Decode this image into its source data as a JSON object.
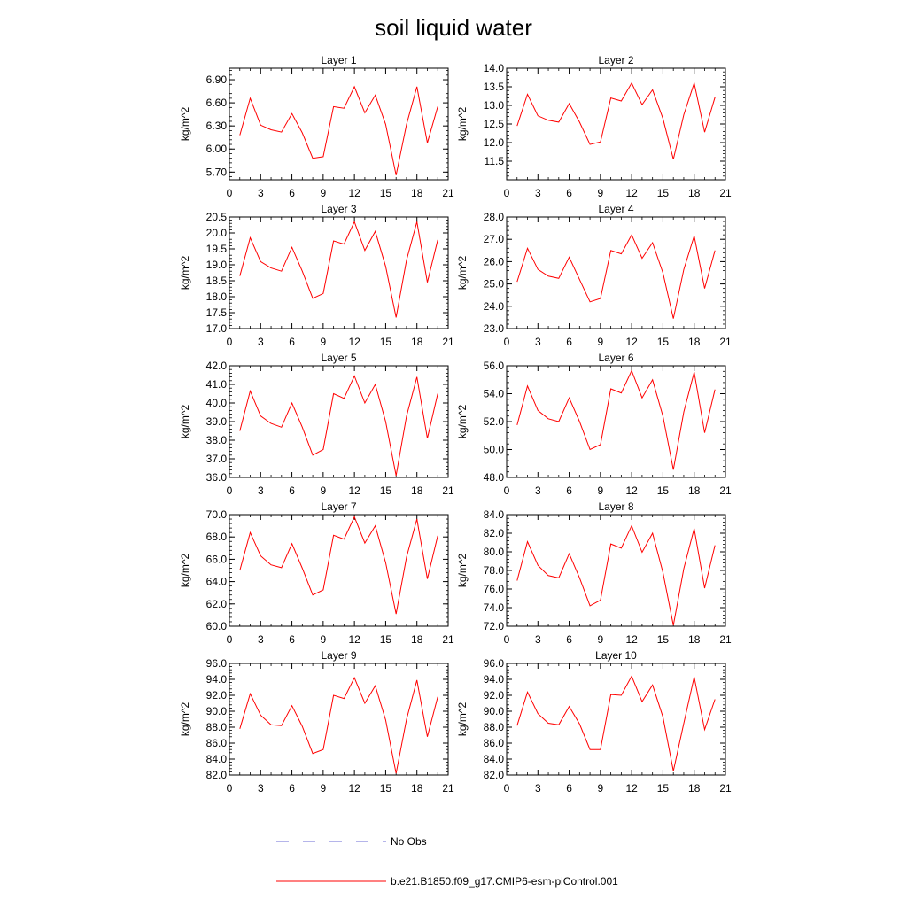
{
  "title": "soil liquid water",
  "legend": {
    "no_obs_label": "No Obs",
    "no_obs_color": "#6b6bd6",
    "model_label": "b.e21.B1850.f09_g17.CMIP6-esm-piControl.001",
    "model_color": "#ff0000"
  },
  "chart_data": [
    {
      "type": "line",
      "title": "Layer 1",
      "ylabel": "kg/m^2",
      "xlim": [
        0,
        21
      ],
      "xticks": [
        0,
        3,
        6,
        9,
        12,
        15,
        18,
        21
      ],
      "ylim": [
        5.6,
        7.05
      ],
      "yticks": [
        5.7,
        6.0,
        6.3,
        6.6,
        6.9
      ],
      "ytick_decimals": 2,
      "x": [
        1,
        2,
        3,
        4,
        5,
        6,
        7,
        8,
        9,
        10,
        11,
        12,
        13,
        14,
        15,
        16,
        17,
        18,
        19,
        20
      ],
      "series": [
        {
          "name": "b.e21.B1850.f09_g17.CMIP6-esm-piControl.001",
          "color": "#ff0000",
          "values": [
            6.18,
            6.66,
            6.31,
            6.25,
            6.22,
            6.46,
            6.21,
            5.88,
            5.9,
            6.55,
            6.53,
            6.81,
            6.47,
            6.7,
            6.32,
            5.66,
            6.32,
            6.81,
            6.08,
            6.55
          ]
        }
      ]
    },
    {
      "type": "line",
      "title": "Layer 2",
      "ylabel": "kg/m^2",
      "xlim": [
        0,
        21
      ],
      "xticks": [
        0,
        3,
        6,
        9,
        12,
        15,
        18,
        21
      ],
      "ylim": [
        11.0,
        14.0
      ],
      "yticks": [
        11.5,
        12.0,
        12.5,
        13.0,
        13.5,
        14.0
      ],
      "ytick_decimals": 1,
      "x": [
        1,
        2,
        3,
        4,
        5,
        6,
        7,
        8,
        9,
        10,
        11,
        12,
        13,
        14,
        15,
        16,
        17,
        18,
        19,
        20
      ],
      "series": [
        {
          "name": "b.e21.B1850.f09_g17.CMIP6-esm-piControl.001",
          "color": "#ff0000",
          "values": [
            12.45,
            13.3,
            12.72,
            12.6,
            12.55,
            13.05,
            12.55,
            11.95,
            12.02,
            13.2,
            13.12,
            13.6,
            13.02,
            13.42,
            12.65,
            11.55,
            12.75,
            13.6,
            12.28,
            13.22
          ]
        }
      ]
    },
    {
      "type": "line",
      "title": "Layer 3",
      "ylabel": "kg/m^2",
      "xlim": [
        0,
        21
      ],
      "xticks": [
        0,
        3,
        6,
        9,
        12,
        15,
        18,
        21
      ],
      "ylim": [
        17.0,
        20.5
      ],
      "yticks": [
        17.0,
        17.5,
        18.0,
        18.5,
        19.0,
        19.5,
        20.0,
        20.5
      ],
      "ytick_decimals": 1,
      "x": [
        1,
        2,
        3,
        4,
        5,
        6,
        7,
        8,
        9,
        10,
        11,
        12,
        13,
        14,
        15,
        16,
        17,
        18,
        19,
        20
      ],
      "series": [
        {
          "name": "b.e21.B1850.f09_g17.CMIP6-esm-piControl.001",
          "color": "#ff0000",
          "values": [
            18.65,
            19.85,
            19.1,
            18.9,
            18.8,
            19.55,
            18.8,
            17.95,
            18.1,
            19.75,
            19.65,
            20.35,
            19.45,
            20.05,
            18.95,
            17.35,
            19.15,
            20.35,
            18.45,
            19.78
          ]
        }
      ]
    },
    {
      "type": "line",
      "title": "Layer 4",
      "ylabel": "kg/m^2",
      "xlim": [
        0,
        21
      ],
      "xticks": [
        0,
        3,
        6,
        9,
        12,
        15,
        18,
        21
      ],
      "ylim": [
        23.0,
        28.0
      ],
      "yticks": [
        23.0,
        24.0,
        25.0,
        26.0,
        27.0,
        28.0
      ],
      "ytick_decimals": 1,
      "x": [
        1,
        2,
        3,
        4,
        5,
        6,
        7,
        8,
        9,
        10,
        11,
        12,
        13,
        14,
        15,
        16,
        17,
        18,
        19,
        20
      ],
      "series": [
        {
          "name": "b.e21.B1850.f09_g17.CMIP6-esm-piControl.001",
          "color": "#ff0000",
          "values": [
            25.1,
            26.6,
            25.65,
            25.35,
            25.25,
            26.2,
            25.2,
            24.2,
            24.35,
            26.5,
            26.35,
            27.2,
            26.15,
            26.85,
            25.5,
            23.45,
            25.65,
            27.15,
            24.8,
            26.5
          ]
        }
      ]
    },
    {
      "type": "line",
      "title": "Layer 5",
      "ylabel": "kg/m^2",
      "xlim": [
        0,
        21
      ],
      "xticks": [
        0,
        3,
        6,
        9,
        12,
        15,
        18,
        21
      ],
      "ylim": [
        36.0,
        42.0
      ],
      "yticks": [
        36.0,
        37.0,
        38.0,
        39.0,
        40.0,
        41.0,
        42.0
      ],
      "ytick_decimals": 1,
      "x": [
        1,
        2,
        3,
        4,
        5,
        6,
        7,
        8,
        9,
        10,
        11,
        12,
        13,
        14,
        15,
        16,
        17,
        18,
        19,
        20
      ],
      "series": [
        {
          "name": "b.e21.B1850.f09_g17.CMIP6-esm-piControl.001",
          "color": "#ff0000",
          "values": [
            38.5,
            40.65,
            39.3,
            38.9,
            38.7,
            40.0,
            38.7,
            37.2,
            37.5,
            40.5,
            40.25,
            41.45,
            40.0,
            41.0,
            39.0,
            36.1,
            39.3,
            41.4,
            38.1,
            40.5
          ]
        }
      ]
    },
    {
      "type": "line",
      "title": "Layer 6",
      "ylabel": "kg/m^2",
      "xlim": [
        0,
        21
      ],
      "xticks": [
        0,
        3,
        6,
        9,
        12,
        15,
        18,
        21
      ],
      "ylim": [
        48.0,
        56.0
      ],
      "yticks": [
        48.0,
        50.0,
        52.0,
        54.0,
        56.0
      ],
      "ytick_decimals": 1,
      "x": [
        1,
        2,
        3,
        4,
        5,
        6,
        7,
        8,
        9,
        10,
        11,
        12,
        13,
        14,
        15,
        16,
        17,
        18,
        19,
        20
      ],
      "series": [
        {
          "name": "b.e21.B1850.f09_g17.CMIP6-esm-piControl.001",
          "color": "#ff0000",
          "values": [
            51.75,
            54.55,
            52.8,
            52.2,
            52.0,
            53.7,
            52.0,
            50.0,
            50.35,
            54.35,
            54.05,
            55.65,
            53.7,
            55.0,
            52.4,
            48.55,
            52.7,
            55.55,
            51.2,
            54.3
          ]
        }
      ]
    },
    {
      "type": "line",
      "title": "Layer 7",
      "ylabel": "kg/m^2",
      "xlim": [
        0,
        21
      ],
      "xticks": [
        0,
        3,
        6,
        9,
        12,
        15,
        18,
        21
      ],
      "ylim": [
        60.0,
        70.0
      ],
      "yticks": [
        60.0,
        62.0,
        64.0,
        66.0,
        68.0,
        70.0
      ],
      "ytick_decimals": 1,
      "x": [
        1,
        2,
        3,
        4,
        5,
        6,
        7,
        8,
        9,
        10,
        11,
        12,
        13,
        14,
        15,
        16,
        17,
        18,
        19,
        20
      ],
      "series": [
        {
          "name": "b.e21.B1850.f09_g17.CMIP6-esm-piControl.001",
          "color": "#ff0000",
          "values": [
            65.0,
            68.4,
            66.3,
            65.5,
            65.25,
            67.4,
            65.2,
            62.8,
            63.25,
            68.15,
            67.8,
            69.8,
            67.45,
            69.0,
            65.7,
            61.1,
            66.2,
            69.6,
            64.25,
            68.1
          ]
        }
      ]
    },
    {
      "type": "line",
      "title": "Layer 8",
      "ylabel": "kg/m^2",
      "xlim": [
        0,
        21
      ],
      "xticks": [
        0,
        3,
        6,
        9,
        12,
        15,
        18,
        21
      ],
      "ylim": [
        72.0,
        84.0
      ],
      "yticks": [
        72.0,
        74.0,
        76.0,
        78.0,
        80.0,
        82.0,
        84.0
      ],
      "ytick_decimals": 1,
      "x": [
        1,
        2,
        3,
        4,
        5,
        6,
        7,
        8,
        9,
        10,
        11,
        12,
        13,
        14,
        15,
        16,
        17,
        18,
        19,
        20
      ],
      "series": [
        {
          "name": "b.e21.B1850.f09_g17.CMIP6-esm-piControl.001",
          "color": "#ff0000",
          "values": [
            76.9,
            81.1,
            78.55,
            77.45,
            77.2,
            79.8,
            77.2,
            74.2,
            74.8,
            80.85,
            80.4,
            82.8,
            79.95,
            82.0,
            77.8,
            72.1,
            78.2,
            82.5,
            76.1,
            80.7
          ]
        }
      ]
    },
    {
      "type": "line",
      "title": "Layer 9",
      "ylabel": "kg/m^2",
      "xlim": [
        0,
        21
      ],
      "xticks": [
        0,
        3,
        6,
        9,
        12,
        15,
        18,
        21
      ],
      "ylim": [
        82.0,
        96.0
      ],
      "yticks": [
        82.0,
        84.0,
        86.0,
        88.0,
        90.0,
        92.0,
        94.0,
        96.0
      ],
      "ytick_decimals": 1,
      "x": [
        1,
        2,
        3,
        4,
        5,
        6,
        7,
        8,
        9,
        10,
        11,
        12,
        13,
        14,
        15,
        16,
        17,
        18,
        19,
        20
      ],
      "series": [
        {
          "name": "b.e21.B1850.f09_g17.CMIP6-esm-piControl.001",
          "color": "#ff0000",
          "values": [
            87.8,
            92.2,
            89.5,
            88.3,
            88.2,
            90.7,
            88.1,
            84.7,
            85.2,
            92.0,
            91.6,
            94.2,
            91.0,
            93.2,
            88.9,
            82.2,
            89.0,
            93.9,
            86.8,
            91.8
          ]
        }
      ]
    },
    {
      "type": "line",
      "title": "Layer 10",
      "ylabel": "kg/m^2",
      "xlim": [
        0,
        21
      ],
      "xticks": [
        0,
        3,
        6,
        9,
        12,
        15,
        18,
        21
      ],
      "ylim": [
        82.0,
        96.0
      ],
      "yticks": [
        82.0,
        84.0,
        86.0,
        88.0,
        90.0,
        92.0,
        94.0,
        96.0
      ],
      "ytick_decimals": 1,
      "x": [
        1,
        2,
        3,
        4,
        5,
        6,
        7,
        8,
        9,
        10,
        11,
        12,
        13,
        14,
        15,
        16,
        17,
        18,
        19,
        20
      ],
      "series": [
        {
          "name": "b.e21.B1850.f09_g17.CMIP6-esm-piControl.001",
          "color": "#ff0000",
          "values": [
            88.2,
            92.4,
            89.7,
            88.5,
            88.3,
            90.6,
            88.4,
            85.2,
            85.2,
            92.1,
            92.0,
            94.4,
            91.2,
            93.3,
            89.3,
            82.5,
            88.5,
            94.3,
            87.7,
            91.5
          ]
        }
      ]
    }
  ]
}
